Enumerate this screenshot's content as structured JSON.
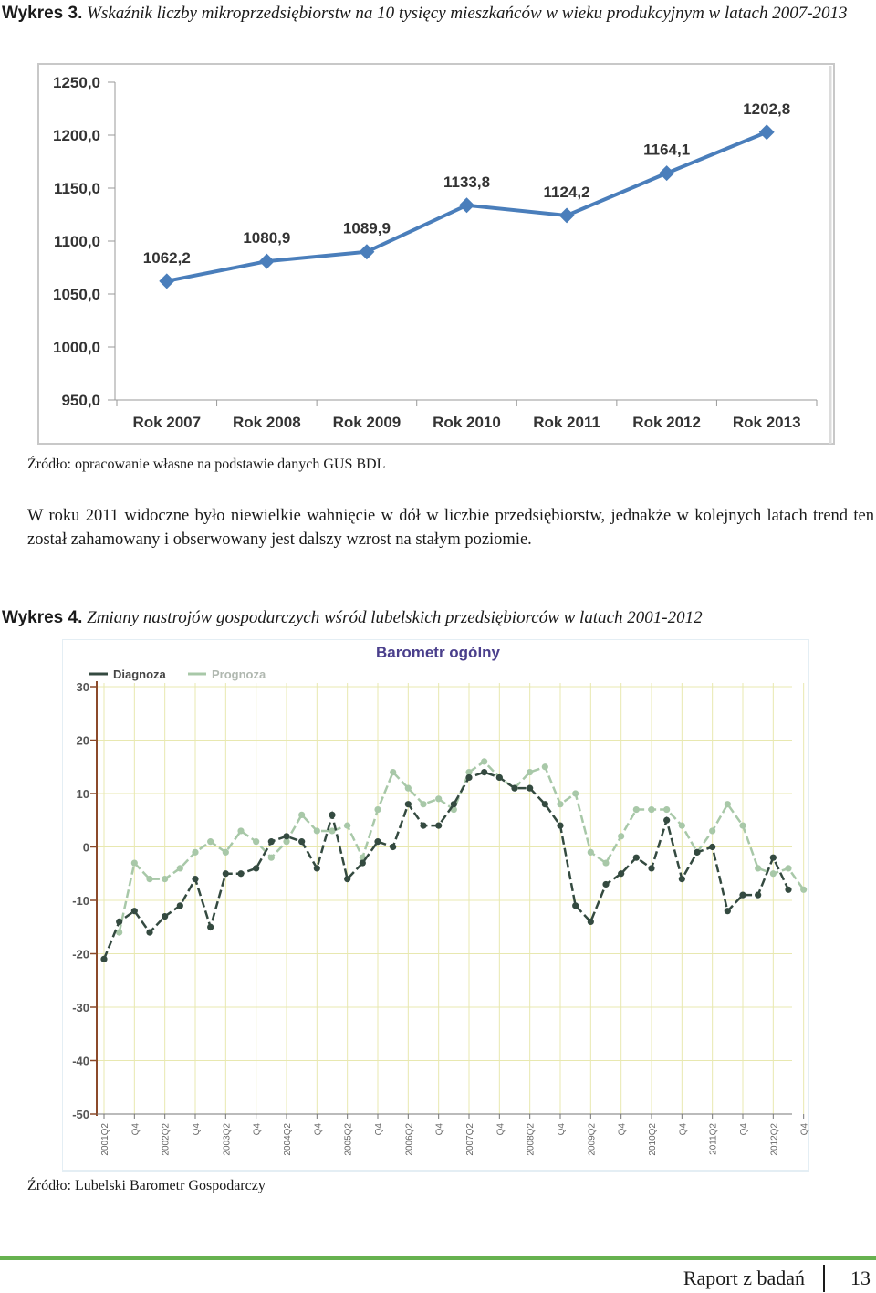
{
  "figure1": {
    "label": "Wykres 3.",
    "caption": "Wskaźnik liczby mikroprzedsiębiorstw na 10 tysięcy mieszkańców w wieku produkcyjnym w latach 2007-2013",
    "source": "Źródło: opracowanie własne na podstawie danych GUS BDL"
  },
  "paragraph": "W roku 2011 widoczne było niewielkie wahnięcie w dół w liczbie przedsiębiorstw, jednakże w kolejnych latach trend ten został zahamowany i obserwowany jest dalszy wzrost na stałym poziomie.",
  "figure2": {
    "label": "Wykres 4.",
    "caption": "Zmiany nastrojów gospodarczych wśród lubelskich przedsiębiorców w latach 2001-2012",
    "source": "Źródło: Lubelski Barometr Gospodarczy"
  },
  "footer": {
    "title": "Raport z badań",
    "page": "13"
  },
  "chart_data": [
    {
      "type": "line",
      "categories": [
        "Rok 2007",
        "Rok 2008",
        "Rok 2009",
        "Rok 2010",
        "Rok 2011",
        "Rok 2012",
        "Rok 2013"
      ],
      "values": [
        1062.2,
        1080.9,
        1089.9,
        1133.8,
        1124.2,
        1164.1,
        1202.8
      ],
      "value_labels": [
        "1062,2",
        "1080,9",
        "1089,9",
        "1133,8",
        "1124,2",
        "1164,1",
        "1202,8"
      ],
      "y_ticks": [
        "950,0",
        "1000,0",
        "1050,0",
        "1100,0",
        "1150,0",
        "1200,0",
        "1250,0"
      ],
      "ylim": [
        950,
        1250
      ],
      "grid": false,
      "color": "#4a7ebb"
    },
    {
      "type": "line",
      "title": "Barometr ogólny",
      "legend": "top-left",
      "grid": true,
      "ylim": [
        -50,
        30
      ],
      "y_ticks": [
        "-50",
        "-40",
        "-30",
        "-20",
        "-10",
        "0",
        "10",
        "20",
        "30"
      ],
      "x_labels": [
        "2001Q2",
        "Q4",
        "2002Q2",
        "Q4",
        "2003Q2",
        "Q4",
        "2004Q2",
        "Q4",
        "2005Q2",
        "Q4",
        "2006Q2",
        "Q4",
        "2007Q2",
        "Q4",
        "2008Q2",
        "Q4",
        "2009Q2",
        "Q4",
        "2010Q2",
        "Q4",
        "2011Q2",
        "Q4",
        "2012Q2",
        "Q4"
      ],
      "series": [
        {
          "name": "Diagnoza",
          "color": "#344a40",
          "values": [
            -21,
            -14,
            -12,
            -16,
            -13,
            -11,
            -6,
            -15,
            -5,
            -5,
            -4,
            1,
            2,
            1,
            -4,
            6,
            -6,
            -3,
            1,
            0,
            8,
            4,
            4,
            8,
            13,
            14,
            13,
            11,
            11,
            8,
            4,
            -11,
            -14,
            -7,
            -5,
            -2,
            -4,
            5,
            -6,
            -1,
            0,
            -12,
            -9,
            -9,
            -2,
            -8
          ]
        },
        {
          "name": "Prognoza",
          "color": "#a8c8a8",
          "values": [
            null,
            -16,
            -3,
            -6,
            -6,
            -4,
            -1,
            1,
            -1,
            3,
            1,
            -2,
            1,
            6,
            3,
            3,
            4,
            -2,
            7,
            14,
            11,
            8,
            9,
            7,
            14,
            16,
            13,
            11,
            14,
            15,
            8,
            10,
            -1,
            -3,
            2,
            7,
            7,
            7,
            4,
            -1,
            3,
            8,
            4,
            -4,
            -5,
            -4,
            -8
          ]
        }
      ]
    }
  ]
}
